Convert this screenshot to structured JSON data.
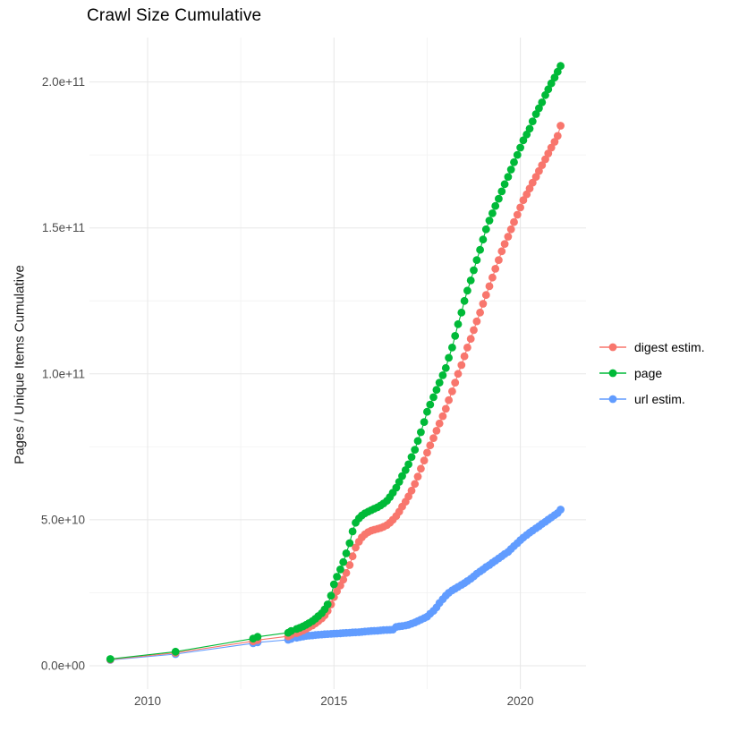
{
  "title": "Crawl Size Cumulative",
  "y_axis_title": "Pages / Unique Items Cumulative",
  "legend": {
    "items": [
      {
        "label": "digest estim.",
        "color": "#F8766D"
      },
      {
        "label": "page",
        "color": "#00BA38"
      },
      {
        "label": "url estim.",
        "color": "#619CFF"
      }
    ]
  },
  "colors": {
    "background": "#FFFFFF",
    "grid_major": "#E7E7E7",
    "grid_minor": "#F4F4F4",
    "axis_text": "#4D4D4D",
    "title_text": "#000000"
  },
  "chart_data": {
    "type": "scatter",
    "title": "Crawl Size Cumulative",
    "xlabel": "",
    "ylabel": "Pages / Unique Items Cumulative",
    "x_unit": "year",
    "y_unit": "count (billions, 1e9)",
    "xlim": [
      2008.4,
      2021.8
    ],
    "ylim_billions": [
      -8,
      215
    ],
    "grid": true,
    "legend_position": "right",
    "x_ticks": [
      {
        "label": "2010",
        "value": 2010
      },
      {
        "label": "2015",
        "value": 2015
      },
      {
        "label": "2020",
        "value": 2020
      }
    ],
    "y_ticks": [
      {
        "label": "0.0e+00",
        "value_billions": 0
      },
      {
        "label": "5.0e+10",
        "value_billions": 50
      },
      {
        "label": "1.0e+11",
        "value_billions": 100
      },
      {
        "label": "1.5e+11",
        "value_billions": 150
      },
      {
        "label": "2.0e+11",
        "value_billions": 200
      }
    ],
    "x_minor_gridlines": [
      2012.5,
      2017.5
    ],
    "y_minor_gridlines_billions": [
      25,
      75,
      125,
      175
    ],
    "series": [
      {
        "name": "digest estim.",
        "color": "#F8766D",
        "points_year_billions": [
          [
            2009.0,
            2.1
          ],
          [
            2010.75,
            4.4
          ],
          [
            2012.83,
            8.4
          ],
          [
            2012.95,
            8.8
          ],
          [
            2013.77,
            10.1
          ],
          [
            2013.85,
            10.6
          ],
          [
            2014.0,
            11.2
          ],
          [
            2014.08,
            11.6
          ],
          [
            2014.17,
            12.1
          ],
          [
            2014.25,
            12.6
          ],
          [
            2014.33,
            13.2
          ],
          [
            2014.42,
            13.8
          ],
          [
            2014.5,
            14.5
          ],
          [
            2014.58,
            15.3
          ],
          [
            2014.67,
            16.2
          ],
          [
            2014.75,
            17.3
          ],
          [
            2014.83,
            18.8
          ],
          [
            2014.92,
            21.0
          ],
          [
            2015.0,
            23.5
          ],
          [
            2015.08,
            25.5
          ],
          [
            2015.17,
            27.5
          ],
          [
            2015.25,
            29.5
          ],
          [
            2015.33,
            31.8
          ],
          [
            2015.42,
            34.5
          ],
          [
            2015.5,
            37.5
          ],
          [
            2015.58,
            40.5
          ],
          [
            2015.67,
            42.5
          ],
          [
            2015.75,
            44.0
          ],
          [
            2015.83,
            45.0
          ],
          [
            2015.92,
            45.8
          ],
          [
            2016.0,
            46.3
          ],
          [
            2016.08,
            46.6
          ],
          [
            2016.17,
            46.9
          ],
          [
            2016.25,
            47.2
          ],
          [
            2016.33,
            47.6
          ],
          [
            2016.42,
            48.2
          ],
          [
            2016.5,
            49.0
          ],
          [
            2016.58,
            50.0
          ],
          [
            2016.67,
            51.3
          ],
          [
            2016.75,
            52.8
          ],
          [
            2016.83,
            54.5
          ],
          [
            2016.92,
            56.2
          ],
          [
            2017.0,
            58.0
          ],
          [
            2017.08,
            60.0
          ],
          [
            2017.17,
            62.3
          ],
          [
            2017.25,
            64.8
          ],
          [
            2017.33,
            67.5
          ],
          [
            2017.42,
            70.3
          ],
          [
            2017.5,
            73.0
          ],
          [
            2017.58,
            75.5
          ],
          [
            2017.67,
            78.0
          ],
          [
            2017.75,
            80.5
          ],
          [
            2017.83,
            83.0
          ],
          [
            2017.92,
            85.5
          ],
          [
            2018.0,
            88.0
          ],
          [
            2018.08,
            91.0
          ],
          [
            2018.17,
            94.0
          ],
          [
            2018.25,
            97.0
          ],
          [
            2018.33,
            100.0
          ],
          [
            2018.42,
            103.0
          ],
          [
            2018.5,
            106.0
          ],
          [
            2018.58,
            109.0
          ],
          [
            2018.67,
            112.0
          ],
          [
            2018.75,
            115.0
          ],
          [
            2018.83,
            118.0
          ],
          [
            2018.92,
            121.0
          ],
          [
            2019.0,
            124.0
          ],
          [
            2019.08,
            127.0
          ],
          [
            2019.17,
            130.0
          ],
          [
            2019.25,
            133.0
          ],
          [
            2019.33,
            136.0
          ],
          [
            2019.42,
            139.0
          ],
          [
            2019.5,
            142.0
          ],
          [
            2019.58,
            144.5
          ],
          [
            2019.67,
            147.0
          ],
          [
            2019.75,
            149.5
          ],
          [
            2019.83,
            152.0
          ],
          [
            2019.92,
            154.5
          ],
          [
            2020.0,
            157.0
          ],
          [
            2020.08,
            159.5
          ],
          [
            2020.17,
            161.5
          ],
          [
            2020.25,
            163.5
          ],
          [
            2020.33,
            165.5
          ],
          [
            2020.42,
            167.5
          ],
          [
            2020.5,
            169.5
          ],
          [
            2020.58,
            171.5
          ],
          [
            2020.67,
            173.5
          ],
          [
            2020.75,
            175.5
          ],
          [
            2020.83,
            177.5
          ],
          [
            2020.92,
            179.5
          ],
          [
            2021.0,
            181.5
          ],
          [
            2021.08,
            185.0
          ]
        ]
      },
      {
        "name": "page",
        "color": "#00BA38",
        "points_year_billions": [
          [
            2009.0,
            2.3
          ],
          [
            2010.75,
            4.8
          ],
          [
            2012.83,
            9.3
          ],
          [
            2012.95,
            9.9
          ],
          [
            2013.77,
            11.3
          ],
          [
            2013.85,
            11.9
          ],
          [
            2014.0,
            12.6
          ],
          [
            2014.08,
            13.0
          ],
          [
            2014.17,
            13.5
          ],
          [
            2014.25,
            14.0
          ],
          [
            2014.33,
            14.6
          ],
          [
            2014.42,
            15.3
          ],
          [
            2014.5,
            16.1
          ],
          [
            2014.58,
            17.0
          ],
          [
            2014.67,
            18.0
          ],
          [
            2014.75,
            19.3
          ],
          [
            2014.83,
            21.0
          ],
          [
            2014.92,
            24.0
          ],
          [
            2015.0,
            27.9
          ],
          [
            2015.08,
            30.5
          ],
          [
            2015.17,
            33.0
          ],
          [
            2015.25,
            35.5
          ],
          [
            2015.33,
            38.5
          ],
          [
            2015.42,
            42.0
          ],
          [
            2015.5,
            46.0
          ],
          [
            2015.58,
            49.0
          ],
          [
            2015.67,
            50.5
          ],
          [
            2015.75,
            51.5
          ],
          [
            2015.83,
            52.2
          ],
          [
            2015.92,
            52.8
          ],
          [
            2016.0,
            53.3
          ],
          [
            2016.08,
            53.8
          ],
          [
            2016.17,
            54.3
          ],
          [
            2016.25,
            54.9
          ],
          [
            2016.33,
            55.6
          ],
          [
            2016.42,
            56.5
          ],
          [
            2016.5,
            57.8
          ],
          [
            2016.58,
            59.3
          ],
          [
            2016.67,
            61.0
          ],
          [
            2016.75,
            63.0
          ],
          [
            2016.83,
            65.0
          ],
          [
            2016.92,
            67.0
          ],
          [
            2017.0,
            69.0
          ],
          [
            2017.08,
            71.5
          ],
          [
            2017.17,
            74.0
          ],
          [
            2017.25,
            77.0
          ],
          [
            2017.33,
            80.0
          ],
          [
            2017.42,
            83.5
          ],
          [
            2017.5,
            87.0
          ],
          [
            2017.58,
            89.5
          ],
          [
            2017.67,
            92.0
          ],
          [
            2017.75,
            94.5
          ],
          [
            2017.83,
            97.0
          ],
          [
            2017.92,
            99.5
          ],
          [
            2018.0,
            102.0
          ],
          [
            2018.08,
            105.5
          ],
          [
            2018.17,
            109.0
          ],
          [
            2018.25,
            113.0
          ],
          [
            2018.33,
            117.0
          ],
          [
            2018.42,
            121.0
          ],
          [
            2018.5,
            125.0
          ],
          [
            2018.58,
            128.5
          ],
          [
            2018.67,
            132.0
          ],
          [
            2018.75,
            135.5
          ],
          [
            2018.83,
            139.0
          ],
          [
            2018.92,
            142.5
          ],
          [
            2019.0,
            146.0
          ],
          [
            2019.08,
            149.5
          ],
          [
            2019.17,
            152.5
          ],
          [
            2019.25,
            155.0
          ],
          [
            2019.33,
            157.5
          ],
          [
            2019.42,
            160.0
          ],
          [
            2019.5,
            162.5
          ],
          [
            2019.58,
            165.0
          ],
          [
            2019.67,
            167.5
          ],
          [
            2019.75,
            170.0
          ],
          [
            2019.83,
            172.5
          ],
          [
            2019.92,
            175.0
          ],
          [
            2020.0,
            177.5
          ],
          [
            2020.08,
            180.0
          ],
          [
            2020.17,
            182.0
          ],
          [
            2020.25,
            184.0
          ],
          [
            2020.33,
            186.5
          ],
          [
            2020.42,
            189.0
          ],
          [
            2020.5,
            191.0
          ],
          [
            2020.58,
            193.0
          ],
          [
            2020.67,
            195.5
          ],
          [
            2020.75,
            197.5
          ],
          [
            2020.83,
            199.5
          ],
          [
            2020.92,
            201.5
          ],
          [
            2021.0,
            203.5
          ],
          [
            2021.08,
            205.5
          ]
        ]
      },
      {
        "name": "url estim.",
        "color": "#619CFF",
        "points_year_billions": [
          [
            2009.0,
            2.0
          ],
          [
            2010.75,
            4.0
          ],
          [
            2012.83,
            7.7
          ],
          [
            2012.95,
            8.0
          ],
          [
            2013.77,
            8.9
          ],
          [
            2013.85,
            9.2
          ],
          [
            2014.0,
            9.6
          ],
          [
            2014.08,
            9.8
          ],
          [
            2014.17,
            10.0
          ],
          [
            2014.25,
            10.2
          ],
          [
            2014.33,
            10.3
          ],
          [
            2014.42,
            10.4
          ],
          [
            2014.5,
            10.5
          ],
          [
            2014.58,
            10.6
          ],
          [
            2014.67,
            10.7
          ],
          [
            2014.75,
            10.8
          ],
          [
            2014.83,
            10.85
          ],
          [
            2014.92,
            10.9
          ],
          [
            2015.0,
            11.0
          ],
          [
            2015.08,
            11.05
          ],
          [
            2015.17,
            11.1
          ],
          [
            2015.25,
            11.2
          ],
          [
            2015.33,
            11.25
          ],
          [
            2015.42,
            11.3
          ],
          [
            2015.5,
            11.4
          ],
          [
            2015.58,
            11.45
          ],
          [
            2015.67,
            11.5
          ],
          [
            2015.75,
            11.6
          ],
          [
            2015.83,
            11.7
          ],
          [
            2015.92,
            11.8
          ],
          [
            2016.0,
            11.9
          ],
          [
            2016.08,
            11.95
          ],
          [
            2016.17,
            12.0
          ],
          [
            2016.25,
            12.1
          ],
          [
            2016.33,
            12.2
          ],
          [
            2016.42,
            12.25
          ],
          [
            2016.5,
            12.3
          ],
          [
            2016.58,
            12.4
          ],
          [
            2016.67,
            13.3
          ],
          [
            2016.75,
            13.5
          ],
          [
            2016.83,
            13.6
          ],
          [
            2016.92,
            13.8
          ],
          [
            2017.0,
            14.0
          ],
          [
            2017.08,
            14.4
          ],
          [
            2017.17,
            14.8
          ],
          [
            2017.25,
            15.3
          ],
          [
            2017.33,
            15.8
          ],
          [
            2017.42,
            16.3
          ],
          [
            2017.5,
            16.8
          ],
          [
            2017.58,
            17.8
          ],
          [
            2017.67,
            18.8
          ],
          [
            2017.75,
            20.0
          ],
          [
            2017.83,
            21.5
          ],
          [
            2017.92,
            22.8
          ],
          [
            2018.0,
            24.0
          ],
          [
            2018.08,
            25.0
          ],
          [
            2018.17,
            25.8
          ],
          [
            2018.25,
            26.4
          ],
          [
            2018.33,
            27.0
          ],
          [
            2018.42,
            27.7
          ],
          [
            2018.5,
            28.3
          ],
          [
            2018.58,
            29.0
          ],
          [
            2018.67,
            29.8
          ],
          [
            2018.75,
            30.6
          ],
          [
            2018.83,
            31.5
          ],
          [
            2018.92,
            32.3
          ],
          [
            2019.0,
            33.0
          ],
          [
            2019.08,
            33.8
          ],
          [
            2019.17,
            34.5
          ],
          [
            2019.25,
            35.3
          ],
          [
            2019.33,
            36.0
          ],
          [
            2019.42,
            36.8
          ],
          [
            2019.5,
            37.5
          ],
          [
            2019.58,
            38.3
          ],
          [
            2019.67,
            39.0
          ],
          [
            2019.75,
            40.0
          ],
          [
            2019.83,
            41.0
          ],
          [
            2019.92,
            42.0
          ],
          [
            2020.0,
            43.0
          ],
          [
            2020.08,
            43.9
          ],
          [
            2020.17,
            44.8
          ],
          [
            2020.25,
            45.6
          ],
          [
            2020.33,
            46.3
          ],
          [
            2020.42,
            47.1
          ],
          [
            2020.5,
            47.8
          ],
          [
            2020.58,
            48.6
          ],
          [
            2020.67,
            49.3
          ],
          [
            2020.75,
            50.1
          ],
          [
            2020.83,
            50.8
          ],
          [
            2020.92,
            51.6
          ],
          [
            2021.0,
            52.3
          ],
          [
            2021.08,
            53.5
          ]
        ]
      }
    ]
  }
}
